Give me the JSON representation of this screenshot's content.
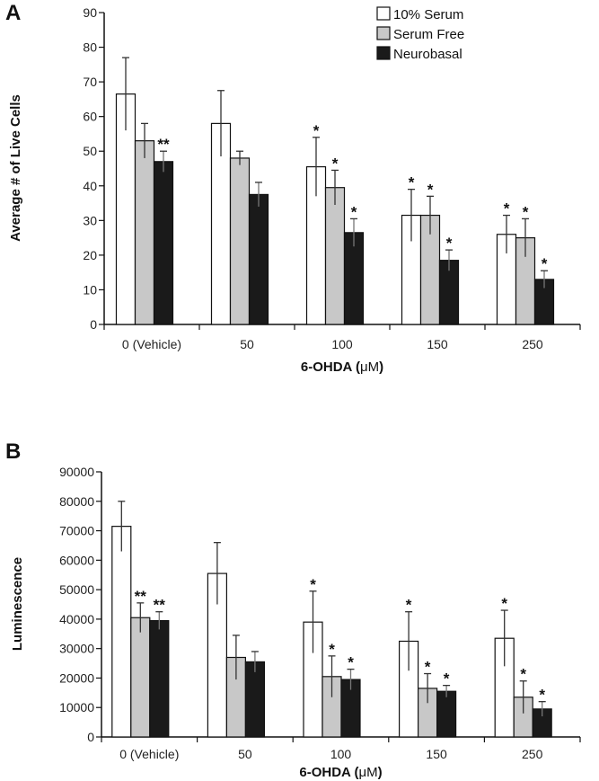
{
  "chart_data": [
    {
      "panel_label": "A",
      "type": "bar",
      "xlabel_prefix": "6-OHDA (",
      "xlabel_unit": "μM",
      "xlabel_suffix": ")",
      "ylabel": "Average # of Live Cells",
      "categories": [
        "0 (Vehicle)",
        "50",
        "100",
        "150",
        "250"
      ],
      "ylim": [
        0,
        90
      ],
      "yticks": [
        "0",
        "10",
        "20",
        "30",
        "40",
        "50",
        "60",
        "70",
        "80",
        "90"
      ],
      "grid": false,
      "legend_position": "top-right",
      "series": [
        {
          "name": "10% Serum",
          "color": "#ffffff",
          "values": [
            66.5,
            58,
            45.5,
            31.5,
            26
          ],
          "errors": [
            10.5,
            9.5,
            8.5,
            7.5,
            5.5
          ],
          "annotations": [
            "",
            "",
            "*",
            "*",
            "*"
          ]
        },
        {
          "name": "Serum Free",
          "color": "#c8c8c8",
          "values": [
            53,
            48,
            39.5,
            31.5,
            25
          ],
          "errors": [
            5,
            2,
            5,
            5.5,
            5.5
          ],
          "annotations": [
            "",
            "",
            "*",
            "*",
            "*"
          ]
        },
        {
          "name": "Neurobasal",
          "color": "#1a1a1a",
          "values": [
            47,
            37.5,
            26.5,
            18.5,
            13
          ],
          "errors": [
            3,
            3.5,
            4,
            3,
            2.5
          ],
          "annotations": [
            "**",
            "",
            "*",
            "*",
            "*"
          ]
        }
      ]
    },
    {
      "panel_label": "B",
      "type": "bar",
      "xlabel_prefix": "6-OHDA (",
      "xlabel_unit": "μM",
      "xlabel_suffix": ")",
      "ylabel": "Luminescence",
      "categories": [
        "0 (Vehicle)",
        "50",
        "100",
        "150",
        "250"
      ],
      "ylim": [
        0,
        90000
      ],
      "yticks": [
        "0",
        "10000",
        "20000",
        "30000",
        "40000",
        "50000",
        "60000",
        "70000",
        "80000",
        "90000"
      ],
      "grid": false,
      "legend_position": "none",
      "series": [
        {
          "name": "10% Serum",
          "color": "#ffffff",
          "values": [
            71500,
            55500,
            39000,
            32500,
            33500
          ],
          "errors": [
            8500,
            10500,
            10500,
            10000,
            9500
          ],
          "annotations": [
            "",
            "",
            "*",
            "*",
            "*"
          ]
        },
        {
          "name": "Serum Free",
          "color": "#c8c8c8",
          "values": [
            40500,
            27000,
            20500,
            16500,
            13500
          ],
          "errors": [
            5000,
            7500,
            7000,
            5000,
            5500
          ],
          "annotations": [
            "**",
            "",
            "*",
            "*",
            "*"
          ]
        },
        {
          "name": "Neurobasal",
          "color": "#1a1a1a",
          "values": [
            39500,
            25500,
            19500,
            15500,
            9500
          ],
          "errors": [
            3000,
            3500,
            3500,
            2000,
            2500
          ],
          "annotations": [
            "**",
            "",
            "*",
            "*",
            "*"
          ]
        }
      ]
    }
  ]
}
